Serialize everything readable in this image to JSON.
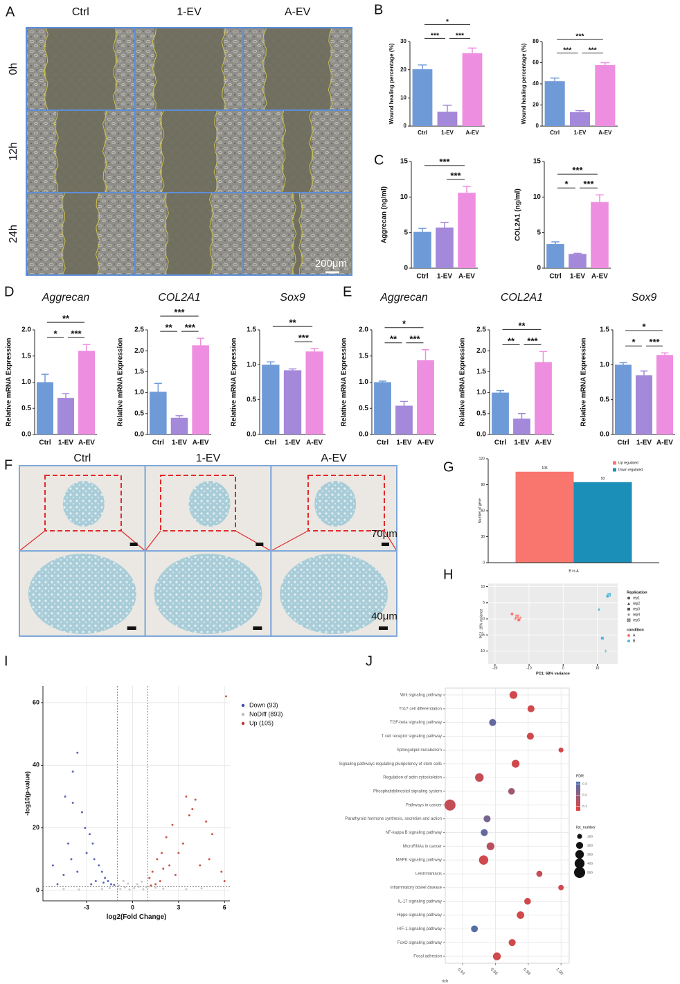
{
  "figure": {
    "panel_labels": [
      "A",
      "B",
      "C",
      "D",
      "E",
      "F",
      "G",
      "H",
      "I",
      "J"
    ],
    "panel_A": {
      "columns": [
        "Ctrl",
        "1-EV",
        "A-EV"
      ],
      "rows": [
        "0h",
        "12h",
        "24h"
      ],
      "scale_bar": "200μm"
    },
    "panel_F": {
      "columns": [
        "Ctrl",
        "1-EV",
        "A-EV"
      ],
      "scale_bars": [
        "70μm",
        "40μm"
      ]
    }
  },
  "chart_data": [
    {
      "type": "bar",
      "ylabel": "Wound healing percentage (%)",
      "categories": [
        "Ctrl",
        "1-EV",
        "A-EV"
      ],
      "colors": [
        "#6f9ad8",
        "#a488d9",
        "#ee8ee0"
      ],
      "values": [
        20.2,
        5.1,
        25.9
      ],
      "errors": [
        1.5,
        2.3,
        1.8
      ],
      "ylim": [
        0,
        30
      ],
      "yticks": [
        0,
        10,
        20,
        30
      ],
      "comparisons": [
        {
          "groups": [
            "Ctrl",
            "1-EV"
          ],
          "label": "***"
        },
        {
          "groups": [
            "1-EV",
            "A-EV"
          ],
          "label": "***"
        },
        {
          "groups": [
            "Ctrl",
            "A-EV"
          ],
          "label": "*"
        }
      ]
    },
    {
      "type": "bar",
      "ylabel": "Wound healing percentage (%)",
      "categories": [
        "Ctrl",
        "1-EV",
        "A-EV"
      ],
      "colors": [
        "#6f9ad8",
        "#a488d9",
        "#ee8ee0"
      ],
      "values": [
        42.5,
        13.2,
        57.8
      ],
      "errors": [
        3,
        1.5,
        2.2
      ],
      "ylim": [
        0,
        80
      ],
      "yticks": [
        0,
        20,
        40,
        60,
        80
      ],
      "comparisons": [
        {
          "groups": [
            "Ctrl",
            "1-EV"
          ],
          "label": "***"
        },
        {
          "groups": [
            "1-EV",
            "A-EV"
          ],
          "label": "***"
        },
        {
          "groups": [
            "Ctrl",
            "A-EV"
          ],
          "label": "***"
        }
      ]
    },
    {
      "type": "bar",
      "ylabel": "Aggrecan (ng/ml)",
      "categories": [
        "Ctrl",
        "1-EV",
        "A-EV"
      ],
      "colors": [
        "#6f9ad8",
        "#a488d9",
        "#ee8ee0"
      ],
      "values": [
        5.1,
        5.7,
        10.6
      ],
      "errors": [
        0.5,
        0.7,
        0.9
      ],
      "ylim": [
        0,
        15
      ],
      "yticks": [
        0,
        5,
        10,
        15
      ],
      "comparisons": [
        {
          "groups": [
            "1-EV",
            "A-EV"
          ],
          "label": "***"
        },
        {
          "groups": [
            "Ctrl",
            "A-EV"
          ],
          "label": "***"
        }
      ]
    },
    {
      "type": "bar",
      "ylabel": "COL2A1 (ng/ml)",
      "categories": [
        "Ctrl",
        "1-EV",
        "A-EV"
      ],
      "colors": [
        "#6f9ad8",
        "#a488d9",
        "#ee8ee0"
      ],
      "values": [
        3.4,
        2.0,
        9.3
      ],
      "errors": [
        0.3,
        0.1,
        1.0
      ],
      "ylim": [
        0,
        15
      ],
      "yticks": [
        0,
        5,
        10,
        15
      ],
      "comparisons": [
        {
          "groups": [
            "Ctrl",
            "1-EV"
          ],
          "label": "*"
        },
        {
          "groups": [
            "1-EV",
            "A-EV"
          ],
          "label": "***"
        },
        {
          "groups": [
            "Ctrl",
            "A-EV"
          ],
          "label": "***"
        }
      ]
    },
    {
      "type": "bar",
      "title": "Aggrecan",
      "ylabel": "Relative mRNA Expression",
      "categories": [
        "Ctrl",
        "1-EV",
        "A-EV"
      ],
      "colors": [
        "#6f9ad8",
        "#a488d9",
        "#ee8ee0"
      ],
      "values": [
        1.0,
        0.7,
        1.6
      ],
      "errors": [
        0.15,
        0.08,
        0.12
      ],
      "ylim": [
        0,
        2
      ],
      "yticks": [
        {
          "value": 0,
          "label": "0.0"
        },
        0.5,
        {
          "value": 1,
          "label": "1.0"
        },
        1.5,
        {
          "value": 2,
          "label": "2.0"
        }
      ],
      "comparisons": [
        {
          "groups": [
            "Ctrl",
            "1-EV"
          ],
          "label": "*"
        },
        {
          "groups": [
            "1-EV",
            "A-EV"
          ],
          "label": "***"
        },
        {
          "groups": [
            "Ctrl",
            "A-EV"
          ],
          "label": "**"
        }
      ]
    },
    {
      "type": "bar",
      "title": "COL2A1",
      "ylabel": "Relative mRNA Expression",
      "categories": [
        "Ctrl",
        "1-EV",
        "A-EV"
      ],
      "colors": [
        "#6f9ad8",
        "#a488d9",
        "#ee8ee0"
      ],
      "values": [
        1.02,
        0.4,
        2.13
      ],
      "errors": [
        0.2,
        0.05,
        0.17
      ],
      "ylim": [
        0,
        2.5
      ],
      "yticks": [
        {
          "value": 0,
          "label": "0.0"
        },
        0.5,
        {
          "value": 1,
          "label": "1.0"
        },
        1.5,
        {
          "value": 2,
          "label": "2.0"
        },
        2.5
      ],
      "comparisons": [
        {
          "groups": [
            "Ctrl",
            "1-EV"
          ],
          "label": "**"
        },
        {
          "groups": [
            "1-EV",
            "A-EV"
          ],
          "label": "***"
        },
        {
          "groups": [
            "Ctrl",
            "A-EV"
          ],
          "label": "***"
        }
      ]
    },
    {
      "type": "bar",
      "title": "Sox9",
      "ylabel": "Relative mRNA Expression",
      "categories": [
        "Ctrl",
        "1-EV",
        "A-EV"
      ],
      "colors": [
        "#6f9ad8",
        "#a488d9",
        "#ee8ee0"
      ],
      "values": [
        1.0,
        0.92,
        1.19
      ],
      "errors": [
        0.04,
        0.02,
        0.04
      ],
      "ylim": [
        0,
        1.5
      ],
      "yticks": [
        {
          "value": 0,
          "label": "0.0"
        },
        0.5,
        {
          "value": 1,
          "label": "1.0"
        },
        1.5
      ],
      "comparisons": [
        {
          "groups": [
            "1-EV",
            "A-EV"
          ],
          "label": "***"
        },
        {
          "groups": [
            "Ctrl",
            "A-EV"
          ],
          "label": "**"
        }
      ]
    },
    {
      "type": "bar",
      "title": "Aggrecan",
      "ylabel": "Relative mRNA Expression",
      "categories": [
        "Ctrl",
        "1-EV",
        "A-EV"
      ],
      "colors": [
        "#6f9ad8",
        "#a488d9",
        "#ee8ee0"
      ],
      "values": [
        1.0,
        0.55,
        1.42
      ],
      "errors": [
        0.02,
        0.08,
        0.2
      ],
      "ylim": [
        0,
        2
      ],
      "yticks": [
        {
          "value": 0,
          "label": "0.0"
        },
        0.5,
        {
          "value": 1,
          "label": "1.0"
        },
        1.5,
        {
          "value": 2,
          "label": "2.0"
        }
      ],
      "comparisons": [
        {
          "groups": [
            "Ctrl",
            "1-EV"
          ],
          "label": "**"
        },
        {
          "groups": [
            "1-EV",
            "A-EV"
          ],
          "label": "***"
        },
        {
          "groups": [
            "Ctrl",
            "A-EV"
          ],
          "label": "*"
        }
      ]
    },
    {
      "type": "bar",
      "title": "COL2A1",
      "ylabel": "Relative mRNA Expression",
      "categories": [
        "Ctrl",
        "1-EV",
        "A-EV"
      ],
      "colors": [
        "#6f9ad8",
        "#a488d9",
        "#ee8ee0"
      ],
      "values": [
        1.0,
        0.38,
        1.73
      ],
      "errors": [
        0.05,
        0.12,
        0.25
      ],
      "ylim": [
        0,
        2.5
      ],
      "yticks": [
        {
          "value": 0,
          "label": "0.0"
        },
        0.5,
        {
          "value": 1,
          "label": "1.0"
        },
        1.5,
        {
          "value": 2,
          "label": "2.0"
        },
        2.5
      ],
      "comparisons": [
        {
          "groups": [
            "Ctrl",
            "1-EV"
          ],
          "label": "**"
        },
        {
          "groups": [
            "1-EV",
            "A-EV"
          ],
          "label": "***"
        },
        {
          "groups": [
            "Ctrl",
            "A-EV"
          ],
          "label": "**"
        }
      ]
    },
    {
      "type": "bar",
      "title": "Sox9",
      "ylabel": "Relative mRNA Expression",
      "categories": [
        "Ctrl",
        "1-EV",
        "A-EV"
      ],
      "colors": [
        "#6f9ad8",
        "#a488d9",
        "#ee8ee0"
      ],
      "values": [
        1.0,
        0.85,
        1.14
      ],
      "errors": [
        0.03,
        0.06,
        0.03
      ],
      "ylim": [
        0,
        1.5
      ],
      "yticks": [
        {
          "value": 0,
          "label": "0.0"
        },
        0.5,
        {
          "value": 1,
          "label": "1.0"
        },
        1.5
      ],
      "comparisons": [
        {
          "groups": [
            "Ctrl",
            "1-EV"
          ],
          "label": "*"
        },
        {
          "groups": [
            "1-EV",
            "A-EV"
          ],
          "label": "***"
        },
        {
          "groups": [
            "Ctrl",
            "A-EV"
          ],
          "label": "*"
        }
      ]
    },
    {
      "type": "bar",
      "ylabel": "Number of gene",
      "categories": [
        "B vs A"
      ],
      "series": [
        {
          "name": "Up regulated",
          "color": "#f8766d",
          "values": [
            105
          ]
        },
        {
          "name": "Down regulated",
          "color": "#1b8fb8",
          "values": [
            93
          ]
        }
      ],
      "ylim": [
        0,
        120
      ],
      "yticks": [
        0,
        30,
        60,
        90,
        120
      ],
      "legend": "top-right"
    },
    {
      "type": "scatter",
      "xlabel": "PC1: 68% variance",
      "ylabel": "PC2: 19% variance",
      "xlim": [
        -22,
        16
      ],
      "ylim": [
        -14,
        11
      ],
      "xticks": [
        -20,
        -10,
        0,
        10
      ],
      "yticks": [
        -10,
        -5,
        0,
        5,
        10
      ],
      "grid": true,
      "background": "#ebebeb",
      "legend_title": "condition",
      "series": [
        {
          "name": "A",
          "color": "#f8766d",
          "x": [
            -15,
            -14,
            -13,
            -12.5,
            -13.5
          ],
          "y": [
            1.5,
            0.2,
            -0.3,
            0.3,
            0.8
          ],
          "rep": [
            "rep1",
            "rep2",
            "rep3",
            "rep4",
            "rep5"
          ]
        },
        {
          "name": "B",
          "color": "#4fb6d8",
          "x": [
            13,
            10.5,
            11.5,
            12.5,
            13.5
          ],
          "y": [
            7,
            3,
            -6,
            -10,
            7.5
          ],
          "rep": [
            "rep1",
            "rep2",
            "rep3",
            "rep4",
            "rep5"
          ]
        }
      ],
      "replication": {
        "title": "Replication",
        "names": [
          "rep1",
          "rep2",
          "rep3",
          "rep4",
          "rep5"
        ],
        "shapes": [
          "circle",
          "triangle",
          "square",
          "plus",
          "cross"
        ]
      }
    },
    {
      "type": "scatter",
      "xlabel": "log2(Fold Change)",
      "ylabel": "-log10(p-value)",
      "xlim": [
        -5.85,
        6.35
      ],
      "ylim": [
        -3.3,
        65.3
      ],
      "xticks": [
        -3,
        0,
        3,
        6
      ],
      "yticks": [
        0,
        20,
        40,
        60
      ],
      "grid": true,
      "thresholds": {
        "x": [
          -1,
          1
        ],
        "y": [
          1.3
        ]
      },
      "series": [
        {
          "name": "Down (93)",
          "color": "#3d4fa8",
          "x": [
            -4.9,
            -4.5,
            -4.2,
            -3.9,
            -3.6,
            -3.9,
            -4.4,
            -3.3,
            -3.1,
            -2.8,
            -2.6,
            -2.5,
            -2.2,
            -2.0,
            -1.8,
            -1.6,
            -1.4,
            -1.2,
            -3.0,
            -4.0,
            -3.6,
            -2.4,
            -5.2,
            -1.9,
            -2.7
          ],
          "y": [
            2,
            5,
            15,
            28,
            44,
            38,
            30,
            25,
            20,
            18,
            15,
            10,
            8,
            6,
            4,
            3,
            2,
            1.8,
            12,
            10,
            6,
            3,
            8,
            2.5,
            2
          ]
        },
        {
          "name": "NoDiff (893)",
          "color": "#bdbdbd",
          "x": [
            -0.8,
            -0.5,
            -0.2,
            0.1,
            0.4,
            0.7,
            0.9,
            -0.9,
            0.3,
            -0.3,
            -2,
            2,
            -3.5,
            3.5,
            -4.5,
            4.5,
            -1.5,
            1.5,
            -0.6,
            0.6
          ],
          "y": [
            0.5,
            1,
            0.3,
            0.8,
            1.2,
            0.4,
            1.1,
            1.6,
            2,
            2.2,
            0.5,
            0.6,
            0.3,
            0.4,
            0.5,
            0.7,
            0.8,
            0.9,
            3,
            2.8
          ]
        },
        {
          "name": "Up (105)",
          "color": "#c0392b",
          "x": [
            6.1,
            3.5,
            3.9,
            4.1,
            3.7,
            4.8,
            5.2,
            2.6,
            2.2,
            1.9,
            1.6,
            1.3,
            1.1,
            2.4,
            3.0,
            4.4,
            5.8,
            6.0,
            1.8,
            2.8,
            1.5,
            3.3,
            2.0,
            5.0,
            1.2
          ],
          "y": [
            62,
            30,
            26,
            29,
            24,
            22,
            18,
            21,
            17,
            12,
            10,
            6,
            4,
            8,
            12,
            8,
            6,
            3,
            3,
            5,
            2,
            15,
            7,
            10,
            1.6
          ]
        }
      ]
    },
    {
      "type": "bubble",
      "xlabel": "rich",
      "categories": [
        "Wnt signaling pathway",
        "Th17 cell differentiation",
        "TGF-beta signaling pathway",
        "T cell receptor signaling pathway",
        "Sphingolipid metabolism",
        "Signaling pathways regulating pluripotency of stem cells",
        "Regulation of actin cytoskeleton",
        "Phosphatidylinositol signaling system",
        "Pathways in cancer",
        "Parathyroid hormone synthesis, secretion and action",
        "NF-kappa B signaling pathway",
        "MicroRNAs in cancer",
        "MAPK signaling pathway",
        "Leishmaniasis",
        "Inflammatory bowel disease",
        "IL-17 signaling pathway",
        "Hippo signaling pathway",
        "HIF-1 signaling pathway",
        "FoxO signaling pathway",
        "Focal adhesion"
      ],
      "x": [
        0.971,
        0.9817,
        0.9583,
        0.9813,
        1.0,
        0.9723,
        0.9502,
        0.9698,
        0.9323,
        0.9549,
        0.9532,
        0.957,
        0.9528,
        0.9868,
        1.0,
        0.9796,
        0.9753,
        0.9472,
        0.9702,
        0.9609
      ],
      "size": [
        250,
        200,
        200,
        200,
        100,
        250,
        300,
        180,
        500,
        200,
        200,
        250,
        350,
        150,
        120,
        180,
        230,
        190,
        200,
        250
      ],
      "fdr": [
        0.1,
        0.1,
        0.28,
        0.1,
        0.1,
        0.1,
        0.12,
        0.18,
        0.12,
        0.25,
        0.28,
        0.14,
        0.1,
        0.12,
        0.1,
        0.1,
        0.1,
        0.3,
        0.1,
        0.1
      ],
      "xlim": [
        0.9294,
        1.005
      ],
      "xticks": [
        0.94,
        0.96,
        0.98,
        {
          "value": 1,
          "label": "1.00"
        }
      ],
      "grid": true,
      "color_title": "FDR",
      "color_lim": [
        0.06,
        0.32
      ],
      "colors": [
        "#e8413a",
        "#4a72b0"
      ],
      "color_ticks": [
        0.1,
        0.2,
        0.3
      ],
      "size_title": "list_number",
      "size_ticks": [
        100,
        200,
        300,
        400,
        500
      ]
    }
  ]
}
